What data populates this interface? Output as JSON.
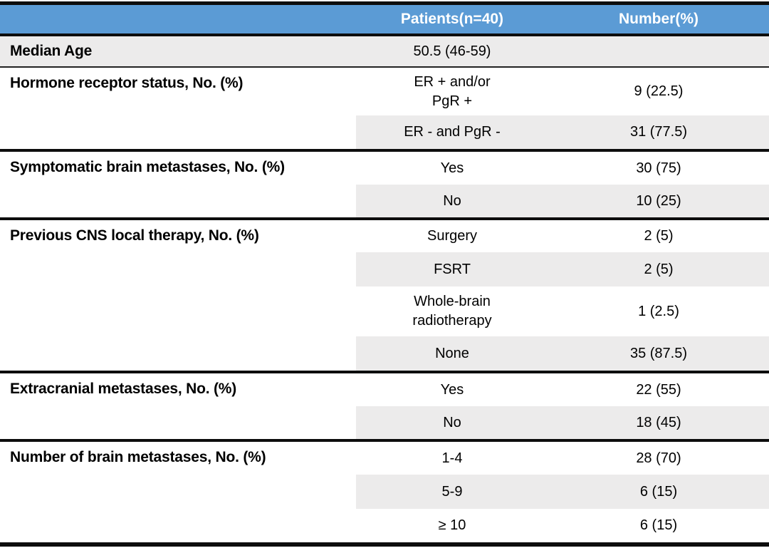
{
  "colors": {
    "header-bg": "#5B9BD5",
    "header-text": "#FFFFFF",
    "row-shade": "#ECEBEB",
    "border": "#0D0D0D"
  },
  "table": {
    "header": {
      "label_col": "",
      "patients_col": "Patients(n=40)",
      "number_col": "Number(%)"
    },
    "sections": [
      {
        "label": "Median Age",
        "rows": [
          {
            "patients": "50.5 (46-59)",
            "number": ""
          }
        ]
      },
      {
        "label": "Hormone receptor status, No. (%)",
        "rows": [
          {
            "patients": "ER + and/or\nPgR +",
            "number": "9 (22.5)"
          },
          {
            "patients": "ER - and PgR -",
            "number": "31 (77.5)"
          }
        ]
      },
      {
        "label": "Symptomatic brain metastases, No. (%)",
        "rows": [
          {
            "patients": "Yes",
            "number": "30 (75)"
          },
          {
            "patients": "No",
            "number": "10 (25)"
          }
        ]
      },
      {
        "label": "Previous CNS local therapy, No. (%)",
        "rows": [
          {
            "patients": "Surgery",
            "number": "2 (5)"
          },
          {
            "patients": "FSRT",
            "number": "2 (5)"
          },
          {
            "patients": "Whole-brain\nradiotherapy",
            "number": "1 (2.5)"
          },
          {
            "patients": "None",
            "number": "35 (87.5)"
          }
        ]
      },
      {
        "label": "Extracranial metastases, No. (%)",
        "rows": [
          {
            "patients": "Yes",
            "number": "22 (55)"
          },
          {
            "patients": "No",
            "number": "18 (45)"
          }
        ]
      },
      {
        "label": "Number of brain metastases, No. (%)",
        "rows": [
          {
            "patients": "1-4",
            "number": "28 (70)"
          },
          {
            "patients": "5-9",
            "number": "6 (15)"
          },
          {
            "patients": "≥ 10",
            "number": "6 (15)"
          }
        ]
      }
    ]
  }
}
